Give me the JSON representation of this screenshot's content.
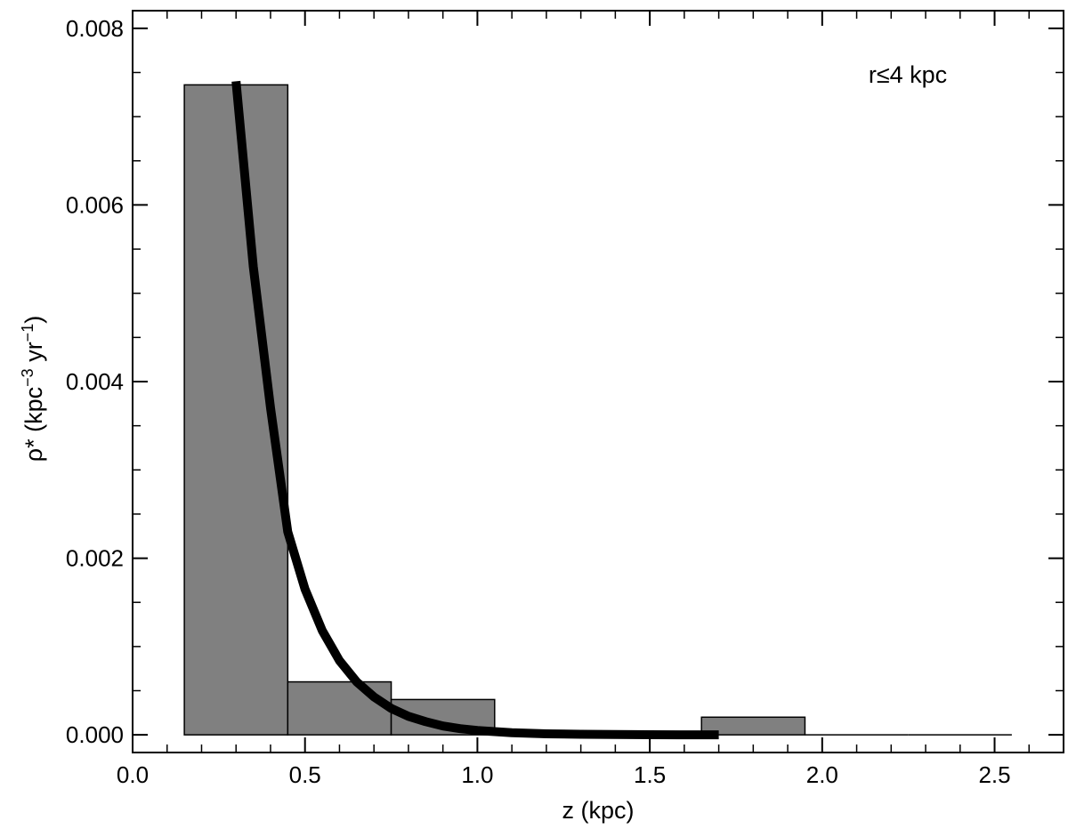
{
  "chart_data": {
    "type": "bar",
    "title": "",
    "xlabel": "z (kpc)",
    "ylabel": "ρ* (kpc",
    "ylabel_sup1": "−3",
    "ylabel_mid": " yr",
    "ylabel_sup2": "−1",
    "ylabel_end": ")",
    "annotation": "r≤4 kpc",
    "xlim": [
      0.0,
      2.7
    ],
    "ylim": [
      -0.0002,
      0.0082
    ],
    "x_ticks": [
      0.0,
      0.5,
      1.0,
      1.5,
      2.0,
      2.5
    ],
    "x_tick_labels": [
      "0.0",
      "0.5",
      "1.0",
      "1.5",
      "2.0",
      "2.5"
    ],
    "y_ticks": [
      0.0,
      0.002,
      0.004,
      0.006,
      0.008
    ],
    "y_tick_labels": [
      "0.000",
      "0.002",
      "0.004",
      "0.006",
      "0.008"
    ],
    "x_minor_step": 0.1,
    "y_minor_step": 0.0005,
    "bins": [
      {
        "x0": 0.15,
        "x1": 0.45,
        "value": 0.00736
      },
      {
        "x0": 0.45,
        "x1": 0.75,
        "value": 0.0006
      },
      {
        "x0": 0.75,
        "x1": 1.05,
        "value": 0.0004
      },
      {
        "x0": 1.05,
        "x1": 1.35,
        "value": 0.0
      },
      {
        "x0": 1.35,
        "x1": 1.65,
        "value": 0.0
      },
      {
        "x0": 1.65,
        "x1": 1.95,
        "value": 0.0002
      },
      {
        "x0": 1.95,
        "x1": 2.25,
        "value": 0.0
      },
      {
        "x0": 2.25,
        "x1": 2.55,
        "value": 0.0
      }
    ],
    "fit_curve": {
      "x": [
        0.3,
        0.35,
        0.4,
        0.45,
        0.5,
        0.55,
        0.6,
        0.65,
        0.7,
        0.75,
        0.8,
        0.85,
        0.9,
        0.95,
        1.0,
        1.1,
        1.2,
        1.3,
        1.4,
        1.5,
        1.6,
        1.7
      ],
      "y": [
        0.0074,
        0.0053,
        0.0037,
        0.0023,
        0.00165,
        0.00118,
        0.00084,
        0.0006,
        0.00043,
        0.0003,
        0.00021,
        0.00015,
        0.0001,
        7e-05,
        5e-05,
        2.5e-05,
        1.2e-05,
        6e-06,
        3e-06,
        1.5e-06,
        7e-07,
        3e-07
      ]
    },
    "colors": {
      "bar_fill": "#808080",
      "bar_stroke": "#000000",
      "curve": "#000000",
      "axes": "#000000"
    }
  }
}
